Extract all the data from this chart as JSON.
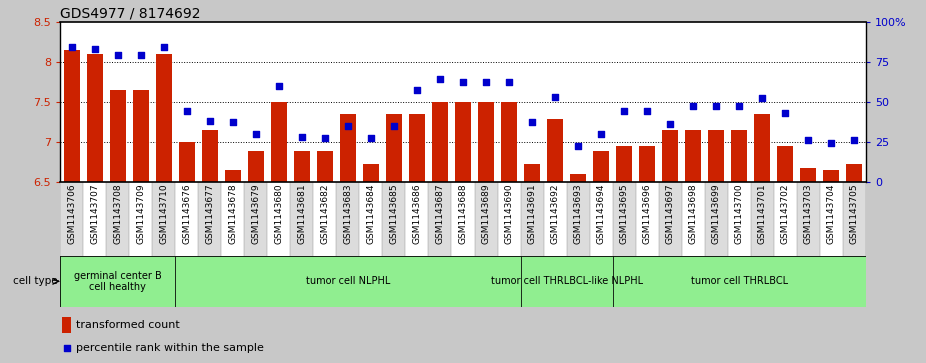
{
  "title": "GDS4977 / 8174692",
  "ylim_left": [
    6.5,
    8.5
  ],
  "ylim_right": [
    0,
    100
  ],
  "yticks_left": [
    6.5,
    7.0,
    7.5,
    8.0,
    8.5
  ],
  "ytick_labels_left": [
    "6.5",
    "7",
    "7.5",
    "8",
    "8.5"
  ],
  "yticks_right": [
    0,
    25,
    50,
    75,
    100
  ],
  "ytick_labels_right": [
    "0",
    "25",
    "50",
    "75",
    "100%"
  ],
  "samples": [
    "GSM1143706",
    "GSM1143707",
    "GSM1143708",
    "GSM1143709",
    "GSM1143710",
    "GSM1143676",
    "GSM1143677",
    "GSM1143678",
    "GSM1143679",
    "GSM1143680",
    "GSM1143681",
    "GSM1143682",
    "GSM1143683",
    "GSM1143684",
    "GSM1143685",
    "GSM1143686",
    "GSM1143687",
    "GSM1143688",
    "GSM1143689",
    "GSM1143690",
    "GSM1143691",
    "GSM1143692",
    "GSM1143693",
    "GSM1143694",
    "GSM1143695",
    "GSM1143696",
    "GSM1143697",
    "GSM1143698",
    "GSM1143699",
    "GSM1143700",
    "GSM1143701",
    "GSM1143702",
    "GSM1143703",
    "GSM1143704",
    "GSM1143705"
  ],
  "bar_values": [
    8.15,
    8.1,
    7.65,
    7.65,
    8.1,
    7.0,
    7.15,
    6.65,
    6.88,
    7.5,
    6.88,
    6.88,
    7.35,
    6.72,
    7.35,
    7.35,
    7.5,
    7.5,
    7.5,
    7.5,
    6.72,
    7.28,
    6.6,
    6.88,
    6.95,
    6.95,
    7.15,
    7.15,
    7.15,
    7.15,
    7.35,
    6.95,
    6.67,
    6.65,
    6.72
  ],
  "scatter_values": [
    84,
    83,
    79,
    79,
    84,
    44,
    38,
    37,
    30,
    60,
    28,
    27,
    35,
    27,
    35,
    57,
    64,
    62,
    62,
    62,
    37,
    53,
    22,
    30,
    44,
    44,
    36,
    47,
    47,
    47,
    52,
    43,
    26,
    24,
    26
  ],
  "groups": [
    {
      "label": "germinal center B\ncell healthy",
      "start": 0,
      "end": 4
    },
    {
      "label": "tumor cell NLPHL",
      "start": 5,
      "end": 19
    },
    {
      "label": "tumor cell THRLBCL-like NLPHL",
      "start": 20,
      "end": 23
    },
    {
      "label": "tumor cell THRLBCL",
      "start": 24,
      "end": 34
    }
  ],
  "bar_color": "#CC2200",
  "scatter_color": "#0000CC",
  "background_color": "#C8C8C8",
  "plot_bg_color": "#FFFFFF",
  "cell_bg_color": "#90EE90",
  "title_fontsize": 10,
  "tick_fontsize": 6.5
}
